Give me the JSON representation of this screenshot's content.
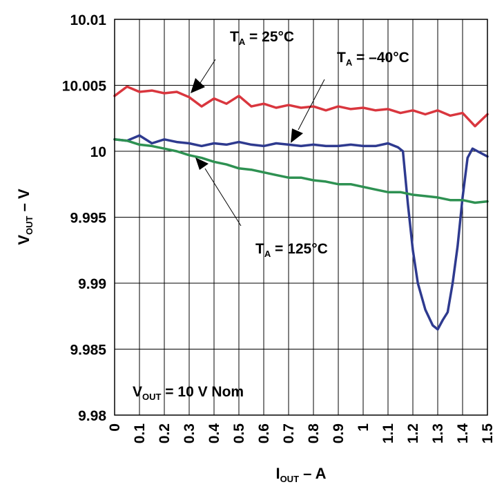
{
  "chart_data": {
    "type": "line",
    "xlabel": {
      "main": "I",
      "sub": "OUT",
      "rest": " – A"
    },
    "ylabel": {
      "main": "V",
      "sub": "OUT",
      "rest": " – V"
    },
    "xlim": [
      0,
      1.5
    ],
    "ylim": [
      9.98,
      10.01
    ],
    "x_ticks": [
      "0",
      "0.1",
      "0.2",
      "0.3",
      "0.4",
      "0.5",
      "0.6",
      "0.7",
      "0.8",
      "0.9",
      "1",
      "1.1",
      "1.2",
      "1.3",
      "1.4",
      "1.5"
    ],
    "y_ticks": [
      "10.01",
      "10.005",
      "10",
      "9.995",
      "9.99",
      "9.985",
      "9.98"
    ],
    "grid": true,
    "series": [
      {
        "name": "TA = 25°C",
        "color": "#d9363e",
        "x": [
          0,
          0.05,
          0.1,
          0.15,
          0.2,
          0.25,
          0.3,
          0.35,
          0.4,
          0.45,
          0.5,
          0.55,
          0.6,
          0.65,
          0.7,
          0.75,
          0.8,
          0.85,
          0.9,
          0.95,
          1.0,
          1.05,
          1.1,
          1.15,
          1.2,
          1.25,
          1.3,
          1.35,
          1.4,
          1.45,
          1.5
        ],
        "y": [
          10.0042,
          10.0049,
          10.0045,
          10.0046,
          10.0044,
          10.0045,
          10.0041,
          10.0034,
          10.004,
          10.0036,
          10.0042,
          10.0034,
          10.0036,
          10.0033,
          10.0035,
          10.0033,
          10.0034,
          10.0031,
          10.0034,
          10.0032,
          10.0033,
          10.0031,
          10.0032,
          10.0029,
          10.0031,
          10.0028,
          10.0031,
          10.0027,
          10.0029,
          10.0019,
          10.0028
        ]
      },
      {
        "name": "TA = –40°C",
        "color": "#2e3a8f",
        "x": [
          0,
          0.05,
          0.1,
          0.15,
          0.2,
          0.25,
          0.3,
          0.35,
          0.4,
          0.45,
          0.5,
          0.55,
          0.6,
          0.65,
          0.7,
          0.75,
          0.8,
          0.85,
          0.9,
          0.95,
          1.0,
          1.05,
          1.1,
          1.14,
          1.16,
          1.18,
          1.2,
          1.22,
          1.25,
          1.28,
          1.3,
          1.32,
          1.34,
          1.36,
          1.38,
          1.4,
          1.42,
          1.44,
          1.46,
          1.5
        ],
        "y": [
          10.0009,
          10.0008,
          10.0012,
          10.0006,
          10.0009,
          10.0007,
          10.0006,
          10.0004,
          10.0006,
          10.0005,
          10.0007,
          10.0005,
          10.0004,
          10.0006,
          10.0005,
          10.0004,
          10.0005,
          10.0004,
          10.0004,
          10.0005,
          10.0004,
          10.0004,
          10.0006,
          10.0003,
          10.0,
          9.996,
          9.9925,
          9.99,
          9.988,
          9.9868,
          9.9865,
          9.9872,
          9.9878,
          9.99,
          9.9928,
          9.9965,
          9.9995,
          10.0002,
          10.0,
          9.9996
        ]
      },
      {
        "name": "TA = 125°C",
        "color": "#2e9152",
        "x": [
          0,
          0.05,
          0.1,
          0.15,
          0.2,
          0.25,
          0.3,
          0.35,
          0.4,
          0.45,
          0.5,
          0.55,
          0.6,
          0.65,
          0.7,
          0.75,
          0.8,
          0.85,
          0.9,
          0.95,
          1.0,
          1.05,
          1.1,
          1.15,
          1.2,
          1.25,
          1.3,
          1.35,
          1.4,
          1.45,
          1.5
        ],
        "y": [
          10.0009,
          10.0008,
          10.0005,
          10.0004,
          10.0002,
          10.0,
          9.9997,
          9.9995,
          9.9992,
          9.999,
          9.9987,
          9.9986,
          9.9984,
          9.9982,
          9.998,
          9.998,
          9.9978,
          9.9977,
          9.9975,
          9.9975,
          9.9973,
          9.9971,
          9.9969,
          9.9969,
          9.9967,
          9.9966,
          9.9965,
          9.9963,
          9.9963,
          9.9961,
          9.9962
        ]
      }
    ],
    "annotations": [
      {
        "main": "T",
        "sub": "A",
        "rest": " = 25°C"
      },
      {
        "main": "T",
        "sub": "A",
        "rest": " = –40°C"
      },
      {
        "main": "T",
        "sub": "A",
        "rest": " = 125°C"
      },
      {
        "main": "V",
        "sub": "OUT",
        "rest": " = 10 V Nom"
      }
    ]
  }
}
